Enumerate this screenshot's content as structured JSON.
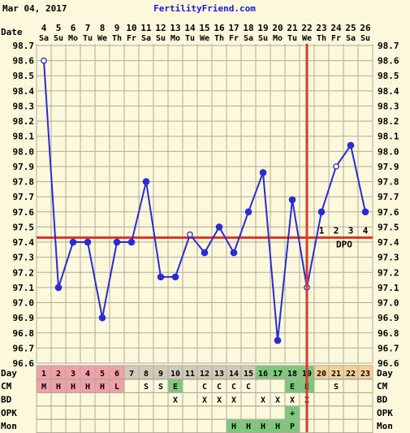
{
  "header": {
    "date": "Mar 04, 2017",
    "site": "FertilityFriend.com"
  },
  "labels": {
    "date_label": "Date",
    "day_label": "Day",
    "dpo_label": "DPO"
  },
  "colors": {
    "background": "#fbf8dc",
    "grid": "#b0ab98",
    "line": "#2b2bd6",
    "coverline": "#d93b2b",
    "ovulation_line": "#d93b2b",
    "menses_cell": "#f0a0a8",
    "fertile_cell": "#7ec87e",
    "luteal_cell": "#f4cf9a",
    "day_cell": "#cfcbb8",
    "text": "#000000",
    "site_link": "#1a1ad0"
  },
  "chart_data": {
    "type": "line",
    "title": "",
    "xlabel": "",
    "ylabel": "",
    "y_ticks": [
      "98.7",
      "98.6",
      "98.5",
      "98.4",
      "98.3",
      "98.2",
      "98.1",
      "98.0",
      "97.9",
      "97.8",
      "97.7",
      "97.6",
      "97.5",
      "97.4",
      "97.3",
      "97.2",
      "97.1",
      "97.0",
      "96.9",
      "96.8",
      "96.7",
      "96.6"
    ],
    "ylim": [
      96.6,
      98.7
    ],
    "dates": [
      "4",
      "5",
      "6",
      "7",
      "8",
      "9",
      "10",
      "11",
      "12",
      "13",
      "14",
      "15",
      "16",
      "17",
      "18",
      "19",
      "20",
      "21",
      "22",
      "23",
      "24",
      "25",
      "26"
    ],
    "weekdays": [
      "Sa",
      "Su",
      "Mo",
      "Tu",
      "We",
      "Th",
      "Fr",
      "Sa",
      "Su",
      "Mo",
      "Tu",
      "We",
      "Th",
      "Fr",
      "Sa",
      "Su",
      "Mo",
      "Tu",
      "We",
      "Th",
      "Fr",
      "Sa",
      "Su"
    ],
    "cycle_days": [
      "1",
      "2",
      "3",
      "4",
      "5",
      "6",
      "7",
      "8",
      "9",
      "10",
      "11",
      "12",
      "13",
      "14",
      "15",
      "16",
      "17",
      "18",
      "19",
      "20",
      "21",
      "22",
      "23"
    ],
    "temps": [
      98.6,
      97.1,
      97.4,
      97.4,
      96.9,
      97.4,
      97.4,
      97.8,
      97.17,
      97.17,
      97.45,
      97.33,
      97.5,
      97.33,
      97.6,
      97.86,
      96.75,
      97.68,
      97.1,
      97.6,
      97.9,
      98.04,
      97.6
    ],
    "open_points": [
      0,
      10,
      18,
      20
    ],
    "coverline": 97.43,
    "ovulation_cycle_day": 19,
    "dpo": [
      "1",
      "2",
      "3",
      "4"
    ],
    "grid": true
  },
  "rows": {
    "cm": {
      "label": "CM",
      "values": [
        "M",
        "H",
        "H",
        "H",
        "H",
        "L",
        "",
        "S",
        "S",
        "E",
        "",
        "C",
        "C",
        "C",
        "C",
        "",
        "",
        "E",
        "E",
        "",
        "S",
        "",
        ""
      ]
    },
    "bd": {
      "label": "BD",
      "values": [
        "",
        "",
        "",
        "",
        "",
        "",
        "",
        "",
        "",
        "X",
        "",
        "X",
        "X",
        "X",
        "",
        "X",
        "X",
        "X",
        "X",
        "",
        "",
        "",
        ""
      ]
    },
    "opk": {
      "label": "OPK",
      "values": [
        "",
        "",
        "",
        "",
        "",
        "",
        "",
        "",
        "",
        "",
        "",
        "",
        "",
        "",
        "",
        "",
        "",
        "+",
        "",
        "",
        "",
        "",
        ""
      ]
    },
    "mon": {
      "label": "Mon",
      "values": [
        "",
        "",
        "",
        "",
        "",
        "",
        "",
        "",
        "",
        "",
        "",
        "",
        "",
        "H",
        "H",
        "H",
        "H",
        "P",
        "",
        "",
        "",
        "",
        ""
      ]
    }
  }
}
